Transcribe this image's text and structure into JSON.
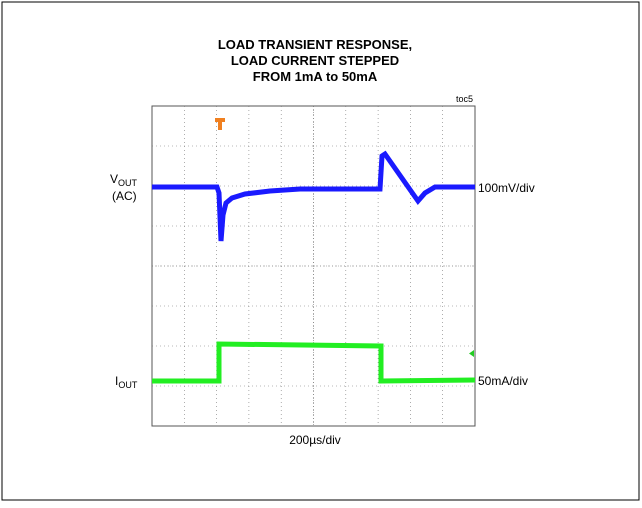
{
  "chart_data": {
    "type": "oscilloscope",
    "title": [
      "LOAD TRANSIENT RESPONSE,",
      "LOAD CURRENT STEPPED",
      "FROM 1mA to 50mA"
    ],
    "figure_id": "toc5",
    "channel_1": {
      "name": "V",
      "name_sub": "OUT",
      "coupling": "(AC)",
      "scale": "100mV/div",
      "color": "#1a1aff"
    },
    "channel_2": {
      "name": "I",
      "name_sub": "OUT",
      "scale": "50mA/div",
      "color": "#22ee22"
    },
    "time_scale": "200µs/div"
  }
}
